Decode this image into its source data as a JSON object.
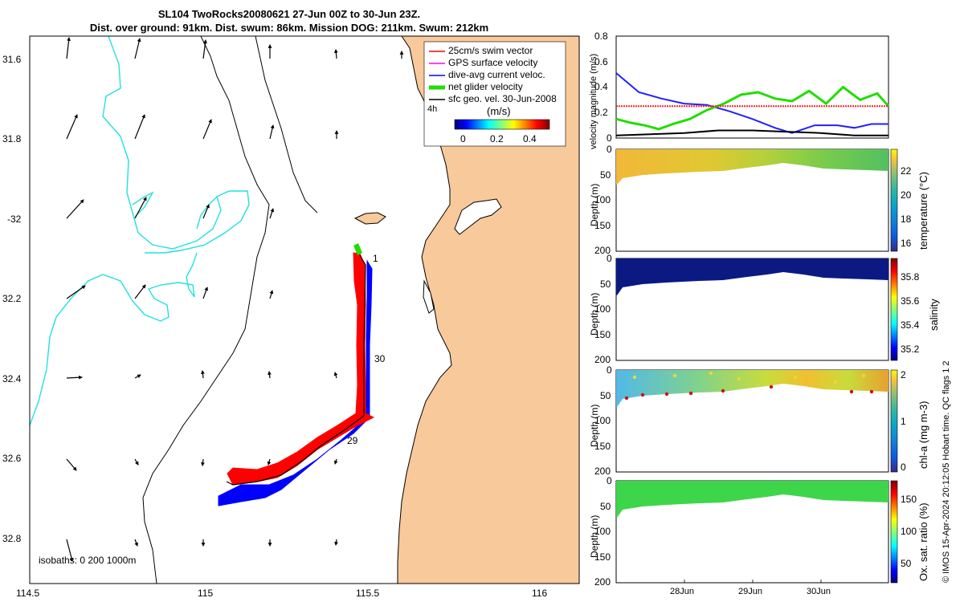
{
  "header": {
    "title_line1": "SL104 TwoRocks20080621 27-Jun 00Z to 30-Jun 23Z.",
    "title_line2": "Dist. over ground: 91km. Dist. swum: 86km. Mission DOG: 211km. Swum: 212km"
  },
  "map": {
    "lat_ticks": [
      "31.6",
      "31.8",
      "-32",
      "32.2",
      "32.4",
      "32.6",
      "32.8"
    ],
    "lon_ticks": [
      "114.5",
      "115",
      "115.5",
      "116"
    ],
    "legend": {
      "items": [
        {
          "label": "25cm/s swim vector",
          "color": "#ff0000"
        },
        {
          "label": "GPS surface velocity",
          "color": "#ff00ff"
        },
        {
          "label": "dive-avg current veloc.",
          "color": "#0000ff"
        },
        {
          "label": "net glider velocity",
          "color": "#00ff00"
        },
        {
          "label": "sfc geo. vel. 30-Jun-2008",
          "color": "#000000"
        }
      ],
      "annotation": "4h",
      "colorbar_unit": "(m/s)",
      "colorbar_ticks": [
        "0",
        "0.2",
        "0.4"
      ]
    },
    "isobaths_label": "isobaths: 0   200  1000m",
    "track_labels": [
      "1",
      "30",
      "29"
    ],
    "colors": {
      "land": "#f8c99b",
      "isobath_200": "#000000",
      "isobath_1000": "#00e5e5"
    }
  },
  "chart_data": [
    {
      "type": "line",
      "title": "",
      "ylabel": "velocity magnitude (m/s)",
      "ylim": [
        0,
        0.8
      ],
      "yticks": [
        "0.8",
        "0.6",
        "0.4",
        "0.2",
        "0"
      ],
      "xlim": [
        "2008-06-27",
        "2008-07-01"
      ],
      "series": [
        {
          "name": "dive-avg current veloc.",
          "color": "#2020ff",
          "x": [
            "2008-06-27 00:00",
            "2008-06-27 08:00",
            "2008-06-27 16:00",
            "2008-06-28 00:00",
            "2008-06-28 08:00",
            "2008-06-28 16:00",
            "2008-06-29 00:00",
            "2008-06-29 08:00",
            "2008-06-29 14:00",
            "2008-06-29 22:00",
            "2008-06-30 06:00",
            "2008-06-30 12:00",
            "2008-06-30 18:00",
            "2008-07-01 00:00"
          ],
          "y": [
            0.51,
            0.36,
            0.31,
            0.27,
            0.26,
            0.21,
            0.15,
            0.08,
            0.04,
            0.1,
            0.1,
            0.08,
            0.11,
            0.11
          ]
        },
        {
          "name": "net glider velocity",
          "color": "#22dd00",
          "x": [
            "2008-06-27 00:00",
            "2008-06-27 05:00",
            "2008-06-27 10:00",
            "2008-06-27 15:00",
            "2008-06-27 20:00",
            "2008-06-28 02:00",
            "2008-06-28 08:00",
            "2008-06-28 14:00",
            "2008-06-28 20:00",
            "2008-06-29 02:00",
            "2008-06-29 08:00",
            "2008-06-29 14:00",
            "2008-06-29 20:00",
            "2008-06-30 02:00",
            "2008-06-30 08:00",
            "2008-06-30 14:00",
            "2008-06-30 20:00",
            "2008-07-01 00:00"
          ],
          "y": [
            0.15,
            0.12,
            0.1,
            0.07,
            0.11,
            0.15,
            0.22,
            0.27,
            0.34,
            0.36,
            0.31,
            0.29,
            0.37,
            0.27,
            0.4,
            0.3,
            0.35,
            0.25
          ]
        },
        {
          "name": "sfc speed",
          "color": "#000000",
          "x": [
            "2008-06-27 00:00",
            "2008-06-27 12:00",
            "2008-06-28 00:00",
            "2008-06-28 12:00",
            "2008-06-29 00:00",
            "2008-06-29 12:00",
            "2008-06-30 00:00",
            "2008-06-30 12:00",
            "2008-07-01 00:00"
          ],
          "y": [
            0.02,
            0.03,
            0.04,
            0.06,
            0.06,
            0.05,
            0.04,
            0.02,
            0.02
          ]
        },
        {
          "name": "25cm/s swim",
          "color": "#ff2020",
          "x": [
            "2008-06-27 00:00",
            "2008-07-01 00:00"
          ],
          "y": [
            0.25,
            0.25
          ]
        }
      ]
    },
    {
      "type": "heatmap",
      "ylabel": "Depth (m)",
      "ylim": [
        200,
        0
      ],
      "yticks": [
        "0",
        "50",
        "100",
        "150",
        "200"
      ],
      "colorbar_label": "temperature (°C)",
      "colorbar_ticks": [
        "22",
        "20",
        "18",
        "16"
      ],
      "clim": [
        15.7,
        23.8
      ]
    },
    {
      "type": "heatmap",
      "ylabel": "Depth (m)",
      "ylim": [
        200,
        0
      ],
      "yticks": [
        "0",
        "50",
        "100",
        "150",
        "200"
      ],
      "colorbar_label": "salinity",
      "colorbar_ticks": [
        "35.8",
        "35.6",
        "35.4",
        "35.2"
      ],
      "clim": [
        35.15,
        35.98
      ]
    },
    {
      "type": "heatmap",
      "ylabel": "Depth (m)",
      "ylim": [
        200,
        0
      ],
      "yticks": [
        "0",
        "50",
        "100",
        "150",
        "200"
      ],
      "colorbar_label": "chl-a (mg m-3)",
      "colorbar_ticks": [
        "2",
        "1",
        "0"
      ],
      "clim": [
        0,
        2
      ]
    },
    {
      "type": "heatmap",
      "ylabel": "Depth (m)",
      "ylim": [
        200,
        0
      ],
      "yticks": [
        "0",
        "50",
        "100",
        "150",
        "200"
      ],
      "colorbar_label": "Ox. sat. ratio (%)",
      "colorbar_ticks": [
        "150",
        "100",
        "50"
      ],
      "clim": [
        20,
        175
      ]
    }
  ],
  "time_axis": {
    "ticks": [
      "28Jun",
      "29Jun",
      "30Jun"
    ]
  },
  "footer": {
    "qc_label": "Hobart time. QC flags 1  2",
    "credit": "© IMOS 15-Apr-2024 20:12:05 "
  }
}
